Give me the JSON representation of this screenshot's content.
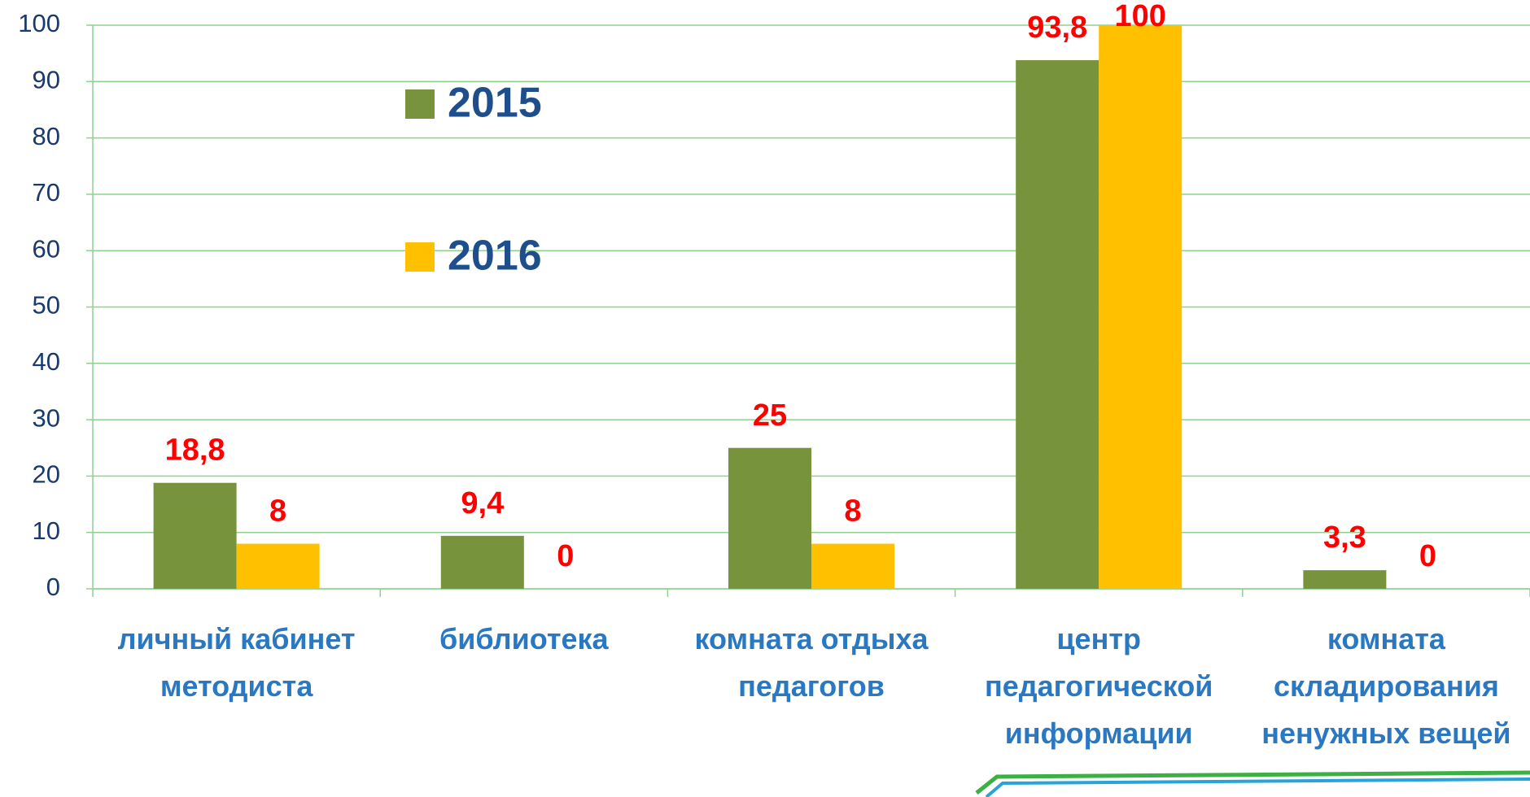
{
  "chart_data": {
    "type": "bar",
    "categories": [
      "личный кабинет методиста",
      "библиотека",
      "комната отдыха педагогов",
      "центр педагогической информации",
      "комната складирования ненужных вещей"
    ],
    "series": [
      {
        "name": "2015",
        "color": "#77933c",
        "values": [
          18.8,
          9.4,
          25,
          93.8,
          3.3
        ],
        "value_labels": [
          "18,8",
          "9,4",
          "25",
          "93,8",
          "3,3"
        ]
      },
      {
        "name": "2016",
        "color": "#ffc000",
        "values": [
          8,
          0,
          8,
          100,
          0
        ],
        "value_labels": [
          "8",
          "0",
          "8",
          "100",
          "0"
        ]
      }
    ],
    "ylim": [
      0,
      100
    ],
    "yticks": [
      0,
      10,
      20,
      30,
      40,
      50,
      60,
      70,
      80,
      90,
      100
    ],
    "grid": true
  }
}
